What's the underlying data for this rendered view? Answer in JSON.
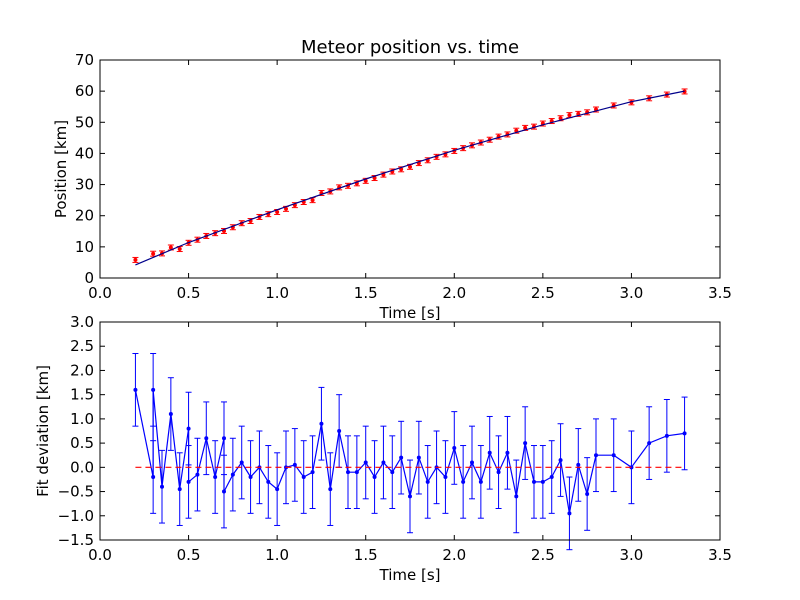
{
  "chart_data": [
    {
      "type": "scatter",
      "title": "Meteor position vs. time",
      "xlabel": "Time [s]",
      "ylabel": "Position [km]",
      "xlim": [
        0.0,
        3.5
      ],
      "ylim": [
        0,
        70
      ],
      "xticks": [
        "0.0",
        "0.5",
        "1.0",
        "1.5",
        "2.0",
        "2.5",
        "3.0",
        "3.5"
      ],
      "yticks": [
        "0",
        "10",
        "20",
        "30",
        "40",
        "50",
        "60",
        "70"
      ],
      "grid": false,
      "colors": {
        "points": "#ff0000",
        "fit": "#00008b"
      },
      "series": [
        {
          "kind": "points-with-errorbars",
          "x": [
            0.2,
            0.3,
            0.35,
            0.4,
            0.45,
            0.5,
            0.55,
            0.6,
            0.65,
            0.7,
            0.75,
            0.8,
            0.85,
            0.9,
            0.95,
            1.0,
            1.05,
            1.1,
            1.15,
            1.2,
            1.25,
            1.3,
            1.35,
            1.4,
            1.45,
            1.5,
            1.55,
            1.6,
            1.65,
            1.7,
            1.75,
            1.8,
            1.85,
            1.9,
            1.95,
            2.0,
            2.05,
            2.1,
            2.15,
            2.2,
            2.25,
            2.3,
            2.35,
            2.4,
            2.45,
            2.5,
            2.55,
            2.6,
            2.65,
            2.7,
            2.75,
            2.8,
            2.9,
            3.0,
            3.1,
            3.2,
            3.3
          ],
          "y": [
            5.8,
            7.8,
            7.9,
            9.8,
            9.3,
            11.3,
            12.3,
            13.5,
            14.4,
            15.1,
            16.3,
            17.6,
            18.3,
            19.6,
            20.5,
            21.2,
            22.2,
            23.4,
            24.4,
            25.0,
            27.3,
            27.8,
            29.1,
            29.6,
            30.4,
            31.2,
            32.1,
            33.2,
            34.2,
            34.9,
            35.7,
            36.9,
            37.8,
            38.9,
            39.7,
            40.8,
            41.7,
            42.6,
            43.5,
            44.4,
            45.4,
            46.1,
            47.3,
            48.2,
            48.6,
            49.6,
            50.4,
            51.3,
            52.3,
            52.7,
            53.2,
            54.1,
            55.4,
            56.4,
            57.7,
            58.9,
            59.9
          ],
          "yerr": 0.8
        },
        {
          "kind": "line",
          "x": [
            0.2,
            0.5,
            1.0,
            1.5,
            2.0,
            2.5,
            3.0,
            3.3
          ],
          "y": [
            4.2,
            11.4,
            21.9,
            31.8,
            41.0,
            49.2,
            56.6,
            60.0
          ]
        }
      ]
    },
    {
      "type": "line",
      "xlabel": "Time [s]",
      "ylabel": "Fit deviation [km]",
      "xlim": [
        0.0,
        3.5
      ],
      "ylim": [
        -1.5,
        3.0
      ],
      "xticks": [
        "0.0",
        "0.5",
        "1.0",
        "1.5",
        "2.0",
        "2.5",
        "3.0",
        "3.5"
      ],
      "yticks": [
        "−1.5",
        "−1.0",
        "−0.5",
        "0.0",
        "0.5",
        "1.0",
        "1.5",
        "2.0",
        "2.5",
        "3.0"
      ],
      "grid": false,
      "colors": {
        "line": "#0000ff",
        "zero": "#ff0000"
      },
      "series": [
        {
          "kind": "line-with-errorbars",
          "x": [
            0.2,
            0.3,
            0.3,
            0.35,
            0.4,
            0.45,
            0.5,
            0.5,
            0.55,
            0.6,
            0.65,
            0.7,
            0.7,
            0.75,
            0.8,
            0.85,
            0.9,
            0.95,
            1.0,
            1.05,
            1.1,
            1.15,
            1.2,
            1.25,
            1.3,
            1.35,
            1.4,
            1.45,
            1.5,
            1.55,
            1.6,
            1.65,
            1.7,
            1.75,
            1.8,
            1.85,
            1.9,
            1.95,
            2.0,
            2.05,
            2.1,
            2.15,
            2.2,
            2.25,
            2.3,
            2.35,
            2.4,
            2.45,
            2.5,
            2.55,
            2.6,
            2.65,
            2.7,
            2.75,
            2.8,
            2.9,
            3.0,
            3.1,
            3.2,
            3.3
          ],
          "y": [
            1.6,
            -0.2,
            1.6,
            -0.4,
            1.1,
            -0.45,
            0.8,
            -0.3,
            -0.15,
            0.6,
            -0.2,
            0.6,
            -0.5,
            -0.15,
            0.1,
            -0.2,
            0.0,
            -0.3,
            -0.45,
            0.0,
            0.05,
            -0.2,
            -0.1,
            0.9,
            -0.45,
            0.75,
            -0.1,
            -0.1,
            0.1,
            -0.2,
            0.1,
            -0.1,
            0.2,
            -0.6,
            0.2,
            -0.3,
            0.0,
            -0.2,
            0.4,
            -0.3,
            0.1,
            -0.3,
            0.3,
            -0.1,
            0.3,
            -0.6,
            0.5,
            -0.3,
            -0.3,
            -0.2,
            0.15,
            -0.95,
            0.05,
            -0.55,
            0.25,
            0.25,
            0.0,
            0.5,
            0.65,
            0.7
          ],
          "yerr": 0.75
        },
        {
          "kind": "dashed-zero-line",
          "x": [
            0.2,
            3.3
          ],
          "y": [
            0.0,
            0.0
          ]
        }
      ]
    }
  ]
}
